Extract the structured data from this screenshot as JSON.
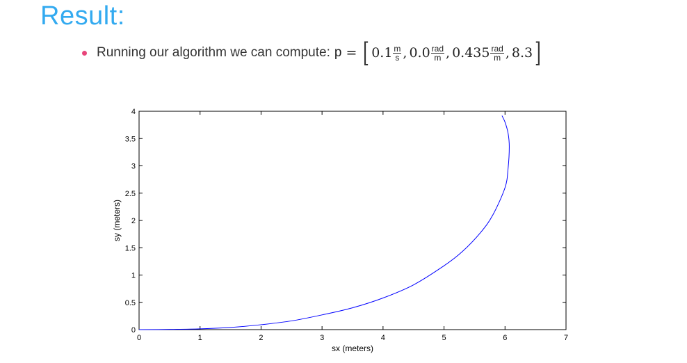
{
  "slide": {
    "title": "Result:",
    "bullet_text": "Running our algorithm we can compute:",
    "equation": {
      "variable": "p",
      "equals": "=",
      "open_bracket": "[",
      "close_bracket": "]",
      "separator": ",",
      "terms": [
        {
          "value": "0.1",
          "unit_num": "m",
          "unit_den": "s"
        },
        {
          "value": "0.0",
          "unit_num": "rad",
          "unit_den": "m"
        },
        {
          "value": "0.435",
          "unit_num": "rad",
          "unit_den": "m"
        },
        {
          "value": "8.3",
          "unit_num": "",
          "unit_den": ""
        }
      ]
    },
    "bullet_color": "#e8457a",
    "title_color": "#33aaf0"
  },
  "chart_data": {
    "type": "line",
    "title": "",
    "xlabel": "sx (meters)",
    "ylabel": "sy (meters)",
    "xlim": [
      0,
      7
    ],
    "ylim": [
      0,
      4
    ],
    "xticks": [
      "0",
      "1",
      "2",
      "3",
      "4",
      "5",
      "6",
      "7"
    ],
    "yticks": [
      "0",
      "0.5",
      "1",
      "1.5",
      "2",
      "2.5",
      "3",
      "3.5",
      "4"
    ],
    "grid": false,
    "series": [
      {
        "color": "#0000ff",
        "x": [
          0,
          0.5,
          1.0,
          1.5,
          2.0,
          2.5,
          3.0,
          3.5,
          4.0,
          4.5,
          5.0,
          5.3,
          5.6,
          5.8,
          6.0,
          6.05,
          6.07,
          6.05,
          6.0,
          5.95
        ],
        "y": [
          0,
          0.004,
          0.015,
          0.04,
          0.09,
          0.16,
          0.27,
          0.4,
          0.58,
          0.82,
          1.17,
          1.43,
          1.78,
          2.1,
          2.6,
          2.95,
          3.35,
          3.6,
          3.8,
          3.92
        ]
      }
    ]
  }
}
